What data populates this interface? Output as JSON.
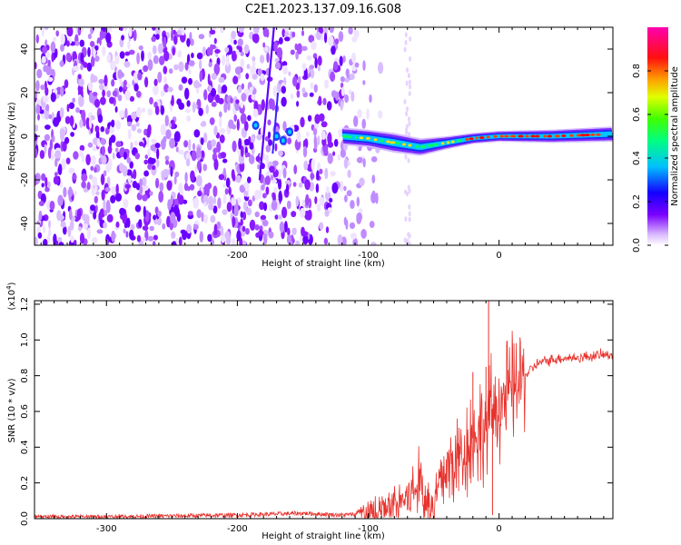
{
  "title": "C2E1.2023.137.09.16.G08",
  "chart_data": [
    {
      "type": "heatmap",
      "xlabel": "Height of straight line (km)",
      "ylabel": "Frequency (Hz)",
      "xlim": [
        -355,
        87
      ],
      "ylim": [
        -50,
        50
      ],
      "x_ticks": [
        -300,
        -200,
        -100,
        0
      ],
      "x_tick_labels": [
        "-300",
        "-200",
        "-100",
        "0"
      ],
      "y_ticks": [
        -40,
        -20,
        0,
        20,
        40
      ],
      "y_tick_labels": [
        "-40",
        "-20",
        "0",
        "20",
        "40"
      ],
      "colorbar": {
        "label": "Normalized spectral amplitude",
        "range": [
          0,
          1
        ],
        "ticks": [
          0.0,
          0.2,
          0.4,
          0.6,
          0.8
        ],
        "tick_labels": [
          "0.0",
          "0.2",
          "0.4",
          "0.6",
          "0.8"
        ],
        "colormap": "rainbow (white-violet-blue-cyan-green-yellow-red-magenta)"
      },
      "features": {
        "noise_region_x": [
          -355,
          -100
        ],
        "vertical_streak_x": [
          -183,
          -172
        ],
        "signal_band": [
          {
            "x": -120,
            "freq": 0,
            "width": 8
          },
          {
            "x": -100,
            "freq": -1,
            "width": 8
          },
          {
            "x": -80,
            "freq": -3,
            "width": 9
          },
          {
            "x": -60,
            "freq": -5,
            "width": 8
          },
          {
            "x": -40,
            "freq": -3,
            "width": 6
          },
          {
            "x": -20,
            "freq": -1,
            "width": 5
          },
          {
            "x": 0,
            "freq": 0,
            "width": 5
          },
          {
            "x": 40,
            "freq": 0,
            "width": 6
          },
          {
            "x": 87,
            "freq": 1,
            "width": 7
          }
        ]
      },
      "grid": false
    },
    {
      "type": "line",
      "xlabel": "Height of straight line (km)",
      "ylabel": "SNR (10 * v/v)",
      "y_multiplier": "(x10^4)",
      "xlim": [
        -355,
        87
      ],
      "ylim": [
        0,
        1.22
      ],
      "x_ticks": [
        -300,
        -200,
        -100,
        0
      ],
      "x_tick_labels": [
        "-300",
        "-200",
        "-100",
        "0"
      ],
      "y_ticks": [
        0.0,
        0.2,
        0.4,
        0.6,
        0.8,
        1.0,
        1.2
      ],
      "y_tick_labels": [
        "0.0",
        "0.2",
        "0.4",
        "0.6",
        "0.8",
        "1.0",
        "1.2"
      ],
      "series": [
        {
          "color": "#e8322c",
          "x": [
            -355,
            -300,
            -250,
            -200,
            -150,
            -120,
            -100,
            -90,
            -80,
            -70,
            -65,
            -60,
            -58,
            -55,
            -50,
            -45,
            -40,
            -35,
            -30,
            -25,
            -20,
            -15,
            -10,
            -8,
            -5,
            -3,
            0,
            5,
            10,
            15,
            20,
            25,
            30,
            40,
            50,
            60,
            70,
            87
          ],
          "values": [
            0.01,
            0.01,
            0.015,
            0.02,
            0.03,
            0.02,
            0.03,
            0.05,
            0.08,
            0.12,
            0.15,
            0.22,
            0.15,
            0.06,
            0.08,
            0.2,
            0.28,
            0.3,
            0.35,
            0.4,
            0.45,
            0.48,
            0.5,
            0.55,
            0.6,
            0.62,
            0.65,
            0.68,
            0.72,
            0.76,
            0.8,
            0.84,
            0.87,
            0.89,
            0.9,
            0.9,
            0.91,
            0.92
          ]
        }
      ],
      "spikes": [
        {
          "x": -10,
          "y": 0.85
        },
        {
          "x": -20,
          "y": 0.82
        },
        {
          "x": -8,
          "y": 1.22
        },
        {
          "x": -5,
          "y": 0.02
        }
      ],
      "grid": false
    }
  ]
}
